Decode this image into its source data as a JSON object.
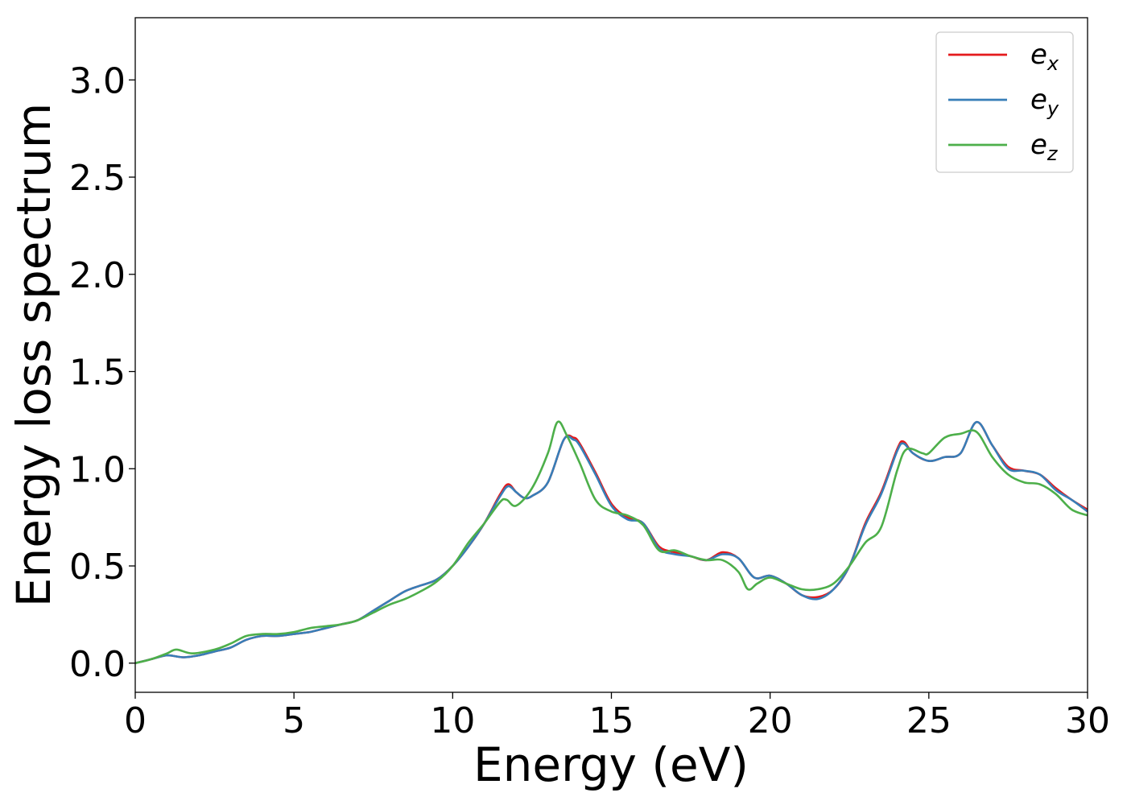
{
  "chart_data": {
    "type": "line",
    "xlabel": "Energy (eV)",
    "ylabel": "Energy loss spectrum",
    "xlim": [
      0,
      30
    ],
    "ylim": [
      -0.15,
      3.32
    ],
    "grid": false,
    "legend_position": "top-right",
    "x_ticks": [
      0,
      5,
      10,
      15,
      20,
      25,
      30
    ],
    "x_tick_labels": [
      "0",
      "5",
      "10",
      "15",
      "20",
      "25",
      "30"
    ],
    "y_ticks": [
      0.0,
      0.5,
      1.0,
      1.5,
      2.0,
      2.5,
      3.0
    ],
    "y_tick_labels": [
      "0.0",
      "0.5",
      "1.0",
      "1.5",
      "2.0",
      "2.5",
      "3.0"
    ],
    "series": [
      {
        "name": "e",
        "subscript": "x",
        "color": "#e41a1c",
        "points": [
          [
            0,
            0.0
          ],
          [
            0.5,
            0.02
          ],
          [
            1.0,
            0.04
          ],
          [
            1.5,
            0.03
          ],
          [
            2.0,
            0.04
          ],
          [
            2.5,
            0.06
          ],
          [
            3.0,
            0.08
          ],
          [
            3.5,
            0.12
          ],
          [
            4.0,
            0.14
          ],
          [
            4.5,
            0.14
          ],
          [
            5.0,
            0.15
          ],
          [
            5.5,
            0.16
          ],
          [
            6.0,
            0.18
          ],
          [
            6.5,
            0.2
          ],
          [
            7.0,
            0.22
          ],
          [
            7.5,
            0.27
          ],
          [
            8.0,
            0.32
          ],
          [
            8.5,
            0.37
          ],
          [
            9.0,
            0.4
          ],
          [
            9.5,
            0.43
          ],
          [
            10.0,
            0.5
          ],
          [
            10.5,
            0.6
          ],
          [
            11.0,
            0.72
          ],
          [
            11.5,
            0.87
          ],
          [
            11.75,
            0.92
          ],
          [
            12.0,
            0.88
          ],
          [
            12.25,
            0.85
          ],
          [
            12.5,
            0.86
          ],
          [
            13.0,
            0.93
          ],
          [
            13.5,
            1.15
          ],
          [
            13.8,
            1.16
          ],
          [
            14.0,
            1.13
          ],
          [
            14.5,
            0.98
          ],
          [
            15.0,
            0.82
          ],
          [
            15.5,
            0.75
          ],
          [
            16.0,
            0.72
          ],
          [
            16.5,
            0.6
          ],
          [
            17.0,
            0.57
          ],
          [
            17.5,
            0.55
          ],
          [
            18.0,
            0.53
          ],
          [
            18.5,
            0.57
          ],
          [
            19.0,
            0.54
          ],
          [
            19.5,
            0.44
          ],
          [
            20.0,
            0.45
          ],
          [
            20.5,
            0.41
          ],
          [
            21.0,
            0.35
          ],
          [
            21.5,
            0.34
          ],
          [
            22.0,
            0.38
          ],
          [
            22.5,
            0.5
          ],
          [
            23.0,
            0.72
          ],
          [
            23.5,
            0.88
          ],
          [
            24.0,
            1.1
          ],
          [
            24.2,
            1.14
          ],
          [
            24.5,
            1.08
          ],
          [
            25.0,
            1.04
          ],
          [
            25.5,
            1.06
          ],
          [
            26.0,
            1.08
          ],
          [
            26.5,
            1.24
          ],
          [
            27.0,
            1.12
          ],
          [
            27.5,
            1.01
          ],
          [
            28.0,
            0.99
          ],
          [
            28.5,
            0.97
          ],
          [
            29.0,
            0.9
          ],
          [
            29.5,
            0.84
          ],
          [
            30.0,
            0.79
          ]
        ]
      },
      {
        "name": "e",
        "subscript": "y",
        "color": "#377eb8",
        "points": [
          [
            0,
            0.0
          ],
          [
            0.5,
            0.02
          ],
          [
            1.0,
            0.04
          ],
          [
            1.5,
            0.03
          ],
          [
            2.0,
            0.04
          ],
          [
            2.5,
            0.06
          ],
          [
            3.0,
            0.08
          ],
          [
            3.5,
            0.12
          ],
          [
            4.0,
            0.14
          ],
          [
            4.5,
            0.14
          ],
          [
            5.0,
            0.15
          ],
          [
            5.5,
            0.16
          ],
          [
            6.0,
            0.18
          ],
          [
            6.5,
            0.2
          ],
          [
            7.0,
            0.22
          ],
          [
            7.5,
            0.27
          ],
          [
            8.0,
            0.32
          ],
          [
            8.5,
            0.37
          ],
          [
            9.0,
            0.4
          ],
          [
            9.5,
            0.43
          ],
          [
            10.0,
            0.5
          ],
          [
            10.5,
            0.6
          ],
          [
            11.0,
            0.72
          ],
          [
            11.5,
            0.86
          ],
          [
            11.75,
            0.91
          ],
          [
            12.0,
            0.88
          ],
          [
            12.25,
            0.85
          ],
          [
            12.5,
            0.86
          ],
          [
            13.0,
            0.93
          ],
          [
            13.5,
            1.15
          ],
          [
            13.8,
            1.15
          ],
          [
            14.0,
            1.12
          ],
          [
            14.5,
            0.97
          ],
          [
            15.0,
            0.81
          ],
          [
            15.5,
            0.74
          ],
          [
            16.0,
            0.72
          ],
          [
            16.5,
            0.59
          ],
          [
            17.0,
            0.56
          ],
          [
            17.5,
            0.55
          ],
          [
            18.0,
            0.53
          ],
          [
            18.5,
            0.56
          ],
          [
            19.0,
            0.54
          ],
          [
            19.5,
            0.44
          ],
          [
            20.0,
            0.45
          ],
          [
            20.5,
            0.41
          ],
          [
            21.0,
            0.35
          ],
          [
            21.5,
            0.33
          ],
          [
            22.0,
            0.38
          ],
          [
            22.5,
            0.5
          ],
          [
            23.0,
            0.71
          ],
          [
            23.5,
            0.87
          ],
          [
            24.0,
            1.09
          ],
          [
            24.2,
            1.13
          ],
          [
            24.5,
            1.08
          ],
          [
            25.0,
            1.04
          ],
          [
            25.5,
            1.06
          ],
          [
            26.0,
            1.08
          ],
          [
            26.5,
            1.24
          ],
          [
            27.0,
            1.12
          ],
          [
            27.5,
            1.0
          ],
          [
            28.0,
            0.99
          ],
          [
            28.5,
            0.97
          ],
          [
            29.0,
            0.89
          ],
          [
            29.5,
            0.84
          ],
          [
            30.0,
            0.78
          ]
        ]
      },
      {
        "name": "e",
        "subscript": "z",
        "color": "#4daf4a",
        "points": [
          [
            0,
            0.0
          ],
          [
            0.5,
            0.02
          ],
          [
            1.0,
            0.05
          ],
          [
            1.3,
            0.07
          ],
          [
            1.8,
            0.05
          ],
          [
            2.5,
            0.07
          ],
          [
            3.0,
            0.1
          ],
          [
            3.5,
            0.14
          ],
          [
            4.0,
            0.15
          ],
          [
            4.5,
            0.15
          ],
          [
            5.0,
            0.16
          ],
          [
            5.5,
            0.18
          ],
          [
            6.0,
            0.19
          ],
          [
            6.5,
            0.2
          ],
          [
            7.0,
            0.22
          ],
          [
            7.5,
            0.26
          ],
          [
            8.0,
            0.3
          ],
          [
            8.5,
            0.33
          ],
          [
            9.0,
            0.37
          ],
          [
            9.5,
            0.42
          ],
          [
            10.0,
            0.5
          ],
          [
            10.5,
            0.62
          ],
          [
            11.0,
            0.72
          ],
          [
            11.5,
            0.83
          ],
          [
            11.7,
            0.84
          ],
          [
            12.0,
            0.81
          ],
          [
            12.5,
            0.9
          ],
          [
            13.0,
            1.08
          ],
          [
            13.3,
            1.24
          ],
          [
            13.6,
            1.17
          ],
          [
            14.0,
            1.03
          ],
          [
            14.5,
            0.84
          ],
          [
            15.0,
            0.78
          ],
          [
            15.5,
            0.76
          ],
          [
            16.0,
            0.71
          ],
          [
            16.5,
            0.58
          ],
          [
            17.0,
            0.58
          ],
          [
            17.5,
            0.55
          ],
          [
            18.0,
            0.53
          ],
          [
            18.5,
            0.53
          ],
          [
            19.0,
            0.47
          ],
          [
            19.3,
            0.38
          ],
          [
            19.6,
            0.41
          ],
          [
            20.0,
            0.44
          ],
          [
            20.5,
            0.41
          ],
          [
            21.0,
            0.38
          ],
          [
            21.5,
            0.38
          ],
          [
            22.0,
            0.41
          ],
          [
            22.5,
            0.5
          ],
          [
            23.0,
            0.62
          ],
          [
            23.5,
            0.7
          ],
          [
            24.0,
            0.99
          ],
          [
            24.3,
            1.1
          ],
          [
            24.8,
            1.08
          ],
          [
            25.0,
            1.08
          ],
          [
            25.5,
            1.16
          ],
          [
            26.0,
            1.18
          ],
          [
            26.5,
            1.19
          ],
          [
            27.0,
            1.06
          ],
          [
            27.5,
            0.97
          ],
          [
            28.0,
            0.93
          ],
          [
            28.5,
            0.92
          ],
          [
            29.0,
            0.87
          ],
          [
            29.5,
            0.79
          ],
          [
            30.0,
            0.76
          ]
        ]
      }
    ]
  }
}
